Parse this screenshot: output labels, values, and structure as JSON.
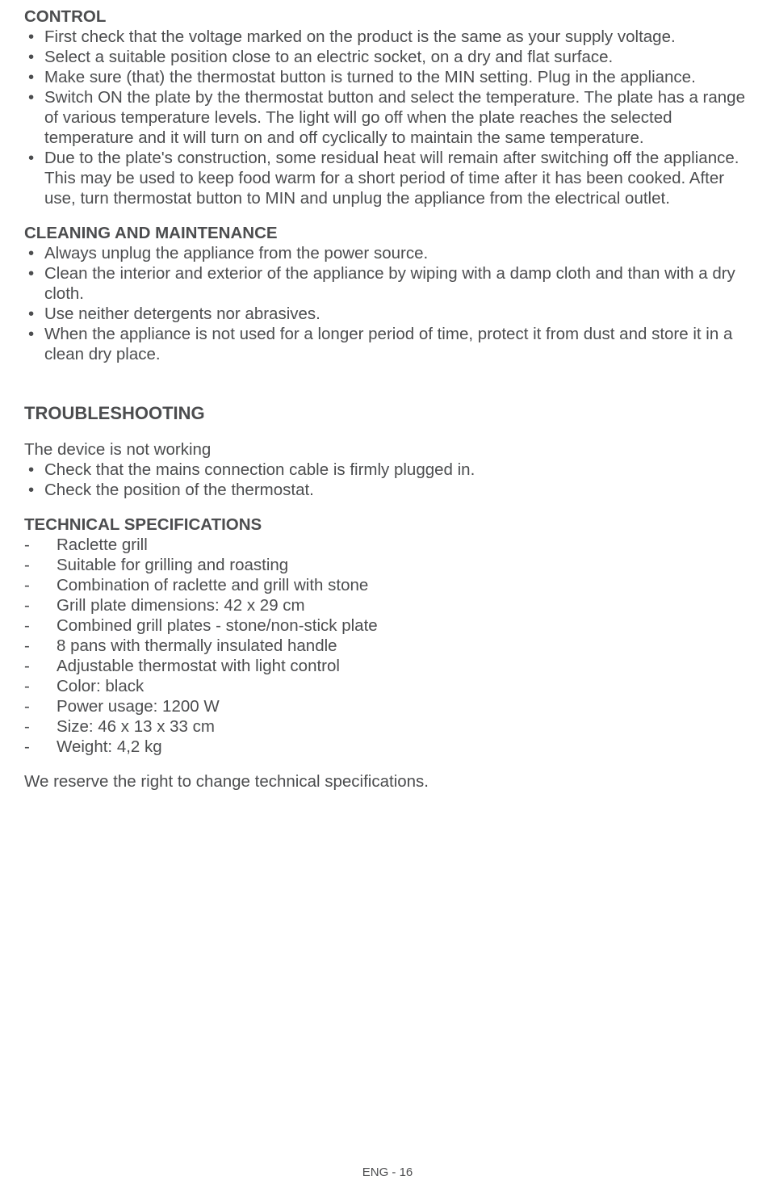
{
  "control": {
    "heading": "CONTROL",
    "items": [
      "First check that the voltage marked on the product is the same as your supply voltage.",
      "Select a suitable position close to an electric socket, on a dry and flat surface.",
      "Make sure (that) the thermostat button is turned to the MIN setting. Plug in the appliance.",
      "Switch ON the plate by the thermostat button and select the temperature. The plate has a range of various temperature levels. The light will go off when the plate reaches the selected temperature and it will turn on and off cyclically to maintain the same temperature.",
      "Due to the plate's construction, some residual heat will remain after switching off the appliance. This may be used to keep food warm for a short period of time after it has been cooked. After use, turn thermostat button to MIN and unplug the appliance from the electrical outlet."
    ]
  },
  "cleaning": {
    "heading": "CLEANING AND MAINTENANCE",
    "items": [
      "Always unplug the appliance from the power source.",
      "Clean the interior and exterior of the appliance by wiping with a damp cloth and than with a dry cloth.",
      "Use neither detergents nor abrasives.",
      "When the appliance is not used for a longer period of time, protect it from dust and store it in a clean dry place."
    ]
  },
  "troubleshooting": {
    "heading": "TROUBLESHOOTING",
    "subhead": "The device is not working",
    "items": [
      "Check that the mains connection cable is firmly plugged in.",
      "Check the position of the thermostat."
    ]
  },
  "specs": {
    "heading": "TECHNICAL SPECIFICATIONS",
    "items": [
      "Raclette grill",
      "Suitable for grilling and roasting",
      "Combination of raclette and grill with stone",
      "Grill plate dimensions: 42 x 29 cm",
      "Combined grill plates - stone/non-stick plate",
      "8 pans with thermally insulated handle",
      "Adjustable thermostat with light control",
      "Color: black",
      "Power usage: 1200 W",
      "Size: 46 x 13 x 33 cm",
      "Weight: 4,2 kg"
    ],
    "footnote": "We reserve the right to change technical specifications."
  },
  "footer": "ENG - 16"
}
